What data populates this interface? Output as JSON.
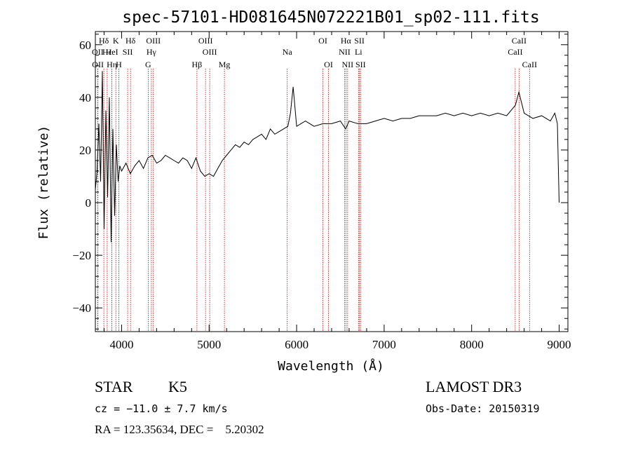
{
  "chart_data": {
    "type": "line",
    "title": "spec-57101-HD081645N072221B01_sp02-111.fits",
    "xlabel": "Wavelength (Å)",
    "ylabel": "Flux (relative)",
    "xlim": [
      3700,
      9100
    ],
    "ylim": [
      -49,
      65
    ],
    "x_ticks": [
      4000,
      5000,
      6000,
      7000,
      8000,
      9000
    ],
    "y_ticks": [
      -40,
      -20,
      0,
      20,
      40,
      60
    ],
    "x_tick_labels": [
      "4000",
      "5000",
      "6000",
      "7000",
      "8000",
      "9000"
    ],
    "y_tick_labels": [
      "−40",
      "−20",
      "0",
      "20",
      "40",
      "60"
    ],
    "series": [
      {
        "name": "flux",
        "x": [
          3700,
          3720,
          3740,
          3760,
          3780,
          3800,
          3820,
          3840,
          3860,
          3880,
          3900,
          3920,
          3940,
          3960,
          3980,
          4000,
          4050,
          4100,
          4150,
          4200,
          4250,
          4300,
          4350,
          4400,
          4450,
          4500,
          4550,
          4600,
          4650,
          4700,
          4750,
          4800,
          4850,
          4900,
          4950,
          5000,
          5050,
          5100,
          5150,
          5200,
          5250,
          5300,
          5350,
          5400,
          5450,
          5500,
          5550,
          5600,
          5650,
          5700,
          5750,
          5800,
          5850,
          5900,
          5930,
          5960,
          6000,
          6100,
          6200,
          6300,
          6400,
          6500,
          6560,
          6600,
          6700,
          6800,
          6900,
          7000,
          7100,
          7200,
          7300,
          7400,
          7500,
          7600,
          7700,
          7800,
          7900,
          8000,
          8100,
          8200,
          8300,
          8400,
          8500,
          8540,
          8600,
          8700,
          8800,
          8900,
          8950,
          8980,
          9000
        ],
        "y": [
          5,
          12,
          30,
          8,
          50,
          -10,
          35,
          2,
          40,
          -15,
          28,
          -5,
          22,
          8,
          14,
          12,
          15,
          11,
          14,
          16,
          13,
          17,
          18,
          15,
          16,
          18,
          17,
          16,
          15,
          17,
          16,
          13,
          17,
          12,
          10,
          11,
          10,
          13,
          16,
          18,
          20,
          22,
          21,
          23,
          22,
          24,
          25,
          26,
          24,
          28,
          26,
          27,
          28,
          29,
          34,
          44,
          29,
          31,
          29,
          30,
          30,
          31,
          28,
          31,
          30,
          30,
          31,
          32,
          31,
          32,
          32,
          33,
          33,
          33,
          34,
          33,
          34,
          33,
          34,
          33,
          34,
          33,
          37,
          42,
          34,
          32,
          33,
          31,
          34,
          30,
          0
        ]
      }
    ],
    "spectral_lines": [
      {
        "label": "Hδ",
        "wavelength": 3797,
        "row": 1
      },
      {
        "label": "OII",
        "wavelength": 3727,
        "row": 2
      },
      {
        "label": "OII",
        "wavelength": 3729,
        "row": 3
      },
      {
        "label": "Hε",
        "wavelength": 3835,
        "row": 2
      },
      {
        "label": "K",
        "wavelength": 3934,
        "row": 1
      },
      {
        "label": "H",
        "wavelength": 3968,
        "row": 3
      },
      {
        "label": "HeI",
        "wavelength": 3889,
        "row": 2
      },
      {
        "label": "Hη",
        "wavelength": 3889,
        "row": 3
      },
      {
        "label": "SII",
        "wavelength": 4069,
        "row": 2
      },
      {
        "label": "Hδ",
        "wavelength": 4102,
        "row": 1
      },
      {
        "label": "OIII",
        "wavelength": 4363,
        "row": 1
      },
      {
        "label": "Hγ",
        "wavelength": 4340,
        "row": 2
      },
      {
        "label": "G",
        "wavelength": 4304,
        "row": 3
      },
      {
        "label": "OIII",
        "wavelength": 4959,
        "row": 1
      },
      {
        "label": "OIII",
        "wavelength": 5007,
        "row": 2
      },
      {
        "label": "Hβ",
        "wavelength": 4861,
        "row": 3
      },
      {
        "label": "Mg",
        "wavelength": 5175,
        "row": 3
      },
      {
        "label": "Na",
        "wavelength": 5893,
        "row": 2
      },
      {
        "label": "OI",
        "wavelength": 6300,
        "row": 1
      },
      {
        "label": "OI",
        "wavelength": 6364,
        "row": 3
      },
      {
        "label": "Hα",
        "wavelength": 6563,
        "row": 1
      },
      {
        "label": "NII",
        "wavelength": 6548,
        "row": 2
      },
      {
        "label": "NII",
        "wavelength": 6583,
        "row": 3
      },
      {
        "label": "SII",
        "wavelength": 6717,
        "row": 1
      },
      {
        "label": "Li",
        "wavelength": 6707,
        "row": 2
      },
      {
        "label": "SII",
        "wavelength": 6731,
        "row": 3
      },
      {
        "label": "CaII",
        "wavelength": 8542,
        "row": 1
      },
      {
        "label": "CaII",
        "wavelength": 8498,
        "row": 2
      },
      {
        "label": "CaII",
        "wavelength": 8662,
        "row": 3
      }
    ],
    "line_color": "#000000",
    "marker_color": "#cc0000"
  },
  "info": {
    "class": "STAR",
    "subclass": "K5",
    "cz": "cz = −11.0 ± 7.7 km/s",
    "radec": "RA = 123.35634, DEC =    5.20302",
    "survey": "LAMOST DR3",
    "obsdate": "Obs-Date: 20150319"
  }
}
